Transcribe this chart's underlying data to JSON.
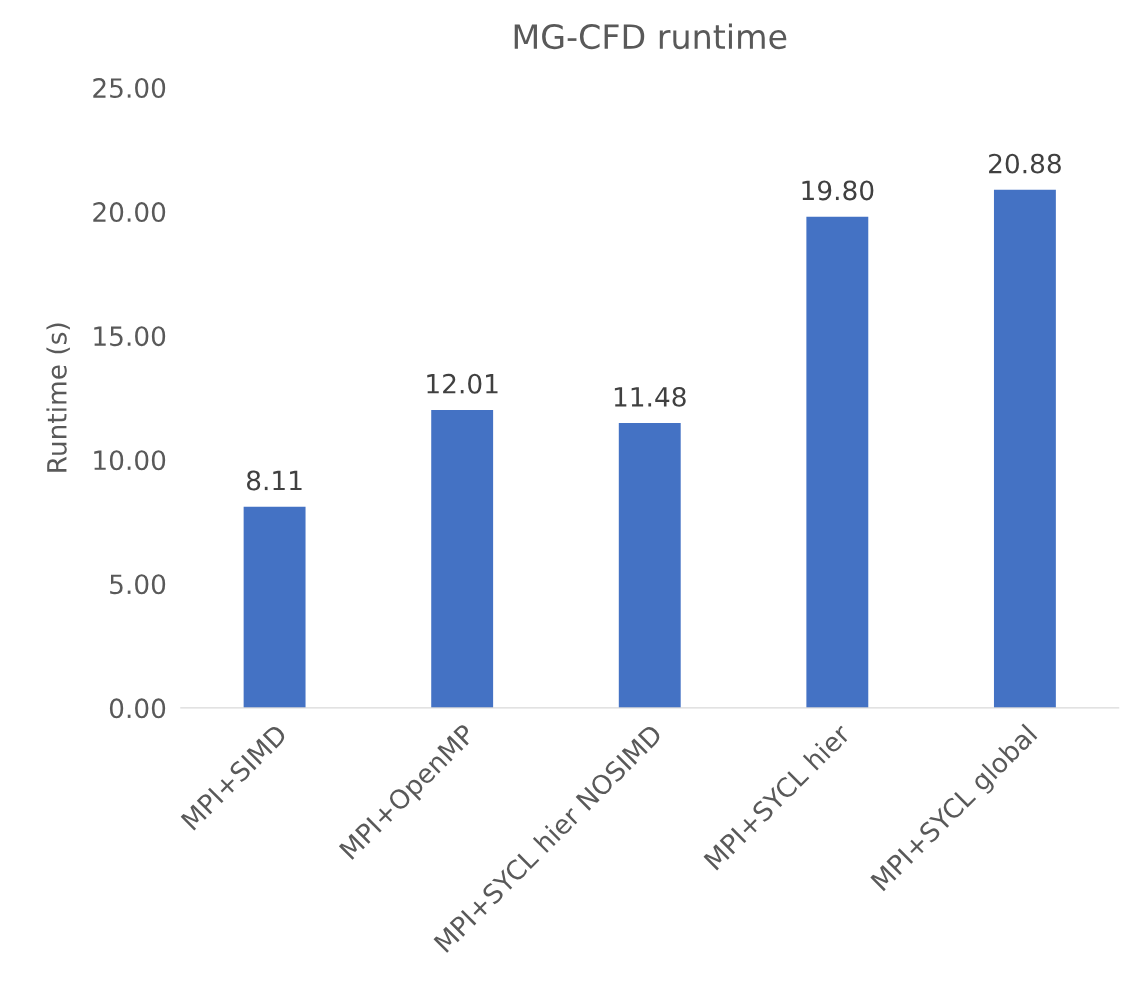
{
  "chart_data": {
    "type": "bar",
    "title": "MG-CFD runtime",
    "ylabel": "Runtime (s)",
    "categories": [
      "MPI+SIMD",
      "MPI+OpenMP",
      "MPI+SYCL hier NOSIMD",
      "MPI+SYCL hier",
      "MPI+SYCL global"
    ],
    "values": [
      8.11,
      12.01,
      11.48,
      19.8,
      20.88
    ],
    "value_labels": [
      "8.11",
      "12.01",
      "11.48",
      "19.80",
      "20.88"
    ],
    "color": "#4472c4",
    "ylim": [
      0,
      25
    ],
    "yticks": [
      {
        "value": 0,
        "label": "0.00"
      },
      {
        "value": 5,
        "label": "5.00"
      },
      {
        "value": 10,
        "label": "10.00"
      },
      {
        "value": 15,
        "label": "15.00"
      },
      {
        "value": 20,
        "label": "20.00"
      },
      {
        "value": 25,
        "label": "25.00"
      }
    ],
    "grid": false
  }
}
